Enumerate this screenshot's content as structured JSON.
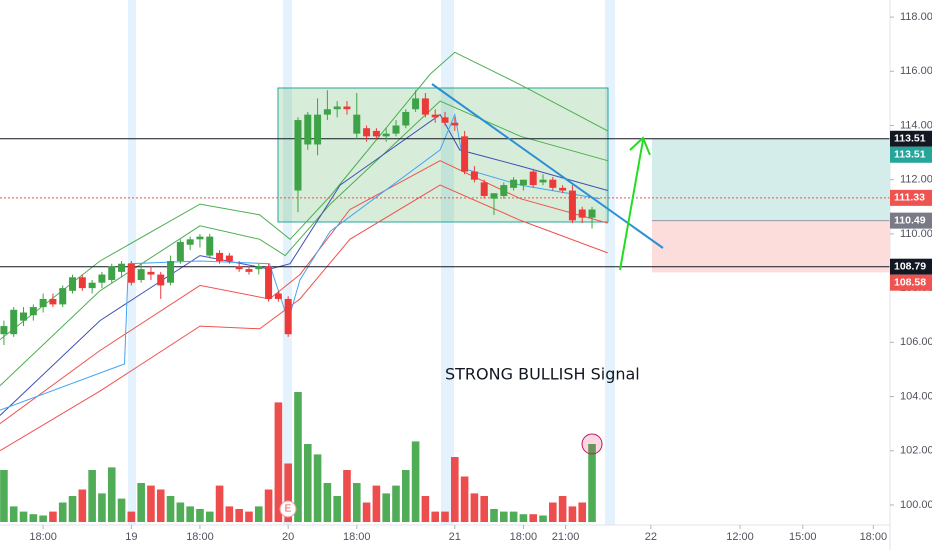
{
  "chart_data": {
    "type": "candlestick",
    "annotation": "STRONG BULLISH Signal",
    "event_marker": "E",
    "up_color": "#3ea346",
    "down_color": "#ec3a3a",
    "xlim": [
      -0.4,
      90.4
    ],
    "xticks": [
      {
        "value": 4,
        "label": "18:00"
      },
      {
        "value": 13,
        "label": "19"
      },
      {
        "value": 20,
        "label": "18:00"
      },
      {
        "value": 29,
        "label": "20"
      },
      {
        "value": 36,
        "label": "18:00"
      },
      {
        "value": 46,
        "label": "21"
      },
      {
        "value": 53,
        "label": "18:00"
      },
      {
        "value": 57.3,
        "label": "21:00"
      },
      {
        "value": 66,
        "label": "22"
      },
      {
        "value": 75.1,
        "label": "12:00"
      },
      {
        "value": 81.5,
        "label": "15:00"
      },
      {
        "value": 88.7,
        "label": "18:00"
      }
    ],
    "ylim": [
      99.26,
      118.63
    ],
    "yticks": [
      {
        "value": 100,
        "label": "100.00"
      },
      {
        "value": 102,
        "label": "102.00"
      },
      {
        "value": 104,
        "label": "104.00"
      },
      {
        "value": 106,
        "label": "106.00"
      },
      {
        "value": 108,
        "label": "108.00"
      },
      {
        "value": 110,
        "label": "110.00"
      },
      {
        "value": 112,
        "label": "112.00"
      },
      {
        "value": 114,
        "label": "114.00"
      },
      {
        "value": 116,
        "label": "116.00"
      },
      {
        "value": 118,
        "label": "118.00"
      }
    ],
    "open": [
      106.3,
      106.3,
      106.8,
      107.0,
      107.3,
      107.6,
      107.4,
      107.9,
      108.4,
      108.0,
      108.2,
      108.3,
      108.6,
      108.9,
      108.3,
      108.6,
      108.5,
      108.2,
      109.0,
      109.6,
      109.8,
      109.2,
      109.3,
      109.2,
      108.8,
      108.7,
      108.7,
      108.8,
      107.8,
      107.6,
      111.6,
      113.3,
      113.3,
      114.4,
      114.6,
      114.7,
      113.7,
      113.9,
      113.8,
      113.6,
      113.7,
      114.0,
      114.6,
      115.0,
      114.4,
      114.3,
      114.1,
      113.6,
      112.3,
      111.9,
      111.3,
      111.4,
      111.7,
      111.8,
      112.3,
      111.9,
      112.0,
      111.7,
      111.6,
      110.9,
      110.6
    ],
    "high": [
      106.8,
      107.3,
      107.3,
      107.4,
      107.8,
      107.8,
      108.1,
      108.5,
      108.5,
      108.3,
      108.6,
      108.9,
      109.0,
      109.0,
      108.9,
      108.8,
      108.6,
      109.2,
      109.8,
      109.9,
      110.0,
      110.0,
      109.4,
      109.3,
      109.0,
      108.8,
      108.9,
      108.9,
      107.9,
      107.7,
      114.3,
      114.5,
      115.0,
      115.3,
      114.9,
      114.9,
      115.2,
      114.0,
      113.9,
      113.9,
      114.2,
      114.6,
      115.3,
      115.2,
      114.6,
      114.5,
      114.3,
      113.8,
      112.5,
      112.0,
      111.5,
      111.9,
      112.1,
      112.0,
      112.4,
      112.2,
      112.1,
      111.8,
      111.8,
      111.0,
      111.0
    ],
    "low": [
      105.9,
      106.2,
      106.6,
      106.8,
      107.1,
      107.3,
      107.3,
      107.8,
      107.9,
      107.8,
      108.0,
      108.2,
      108.4,
      108.1,
      108.2,
      108.3,
      107.6,
      108.1,
      108.9,
      109.4,
      109.5,
      109.1,
      108.9,
      108.9,
      108.6,
      108.5,
      108.5,
      107.5,
      107.5,
      106.2,
      110.8,
      113.1,
      112.9,
      114.2,
      114.3,
      114.4,
      113.5,
      113.4,
      113.5,
      113.4,
      113.6,
      113.9,
      114.5,
      114.3,
      114.1,
      114.0,
      113.8,
      112.2,
      111.9,
      111.3,
      110.7,
      111.3,
      111.6,
      111.6,
      111.7,
      111.8,
      111.6,
      111.5,
      110.4,
      110.4,
      110.2
    ],
    "close": [
      106.6,
      107.2,
      107.1,
      107.3,
      107.6,
      107.4,
      108.0,
      108.4,
      108.0,
      108.2,
      108.5,
      108.8,
      108.9,
      108.2,
      108.7,
      108.5,
      108.1,
      109.0,
      109.7,
      109.8,
      109.9,
      109.9,
      109.0,
      109.0,
      108.7,
      108.6,
      108.8,
      107.6,
      107.6,
      106.3,
      114.2,
      114.4,
      114.4,
      114.6,
      114.7,
      114.6,
      114.4,
      113.6,
      113.6,
      113.7,
      114.0,
      114.5,
      115.0,
      114.4,
      114.3,
      114.1,
      114.0,
      112.3,
      112.0,
      111.4,
      111.5,
      111.8,
      112.0,
      112.0,
      111.8,
      112.0,
      111.7,
      111.6,
      110.5,
      110.6,
      110.9
    ],
    "volume": [
      40,
      12,
      8,
      6,
      5,
      8,
      15,
      20,
      25,
      40,
      22,
      42,
      18,
      8,
      30,
      28,
      25,
      20,
      15,
      12,
      10,
      8,
      28,
      12,
      10,
      8,
      12,
      25,
      92,
      45,
      100,
      60,
      52,
      30,
      20,
      40,
      30,
      15,
      28,
      22,
      28,
      40,
      62,
      20,
      8,
      8,
      50,
      35,
      22,
      20,
      10,
      8,
      8,
      6,
      6,
      5,
      15,
      20,
      12,
      15,
      60
    ],
    "indicators": [
      {
        "color": "#4caf50",
        "x": [
          -0.4,
          9.8,
          20,
          26.1,
          29.2,
          33.3,
          43.5,
          46,
          52.7,
          61.6
        ],
        "values": [
          106.1,
          109.0,
          111.1,
          110.7,
          109.8,
          111.4,
          115.9,
          116.7,
          115.5,
          113.8
        ]
      },
      {
        "color": "#4caf50",
        "x": [
          -0.4,
          9.8,
          20,
          26.1,
          28.7,
          33.3,
          44.5,
          52.7,
          61.6
        ],
        "values": [
          104.4,
          107.9,
          110.3,
          109.8,
          109.2,
          111.1,
          114.9,
          113.6,
          112.7
        ]
      },
      {
        "color": "#3f51b5",
        "x": [
          -0.4,
          9.8,
          20,
          27.1,
          29.2,
          34.3,
          44.5,
          46.5,
          52.7,
          61.6
        ],
        "values": [
          103.3,
          106.8,
          109.2,
          108.7,
          108.9,
          111.8,
          114.4,
          113.1,
          112.5,
          111.6
        ]
      },
      {
        "color": "#ef5350",
        "x": [
          -0.4,
          9.8,
          20,
          27.1,
          30.2,
          35.3,
          44.5,
          52.7,
          61.6
        ],
        "values": [
          103.0,
          105.7,
          108.1,
          107.6,
          108.5,
          110.9,
          112.7,
          111.3,
          110.4
        ]
      },
      {
        "color": "#ef5350",
        "x": [
          -0.4,
          9.8,
          20,
          26.1,
          30.2,
          35.3,
          44.5,
          52.7,
          61.6
        ],
        "values": [
          102.0,
          104.2,
          106.6,
          106.5,
          107.6,
          109.8,
          111.8,
          110.5,
          109.3
        ]
      },
      {
        "color": "#42a5f5",
        "x": [
          -0.4,
          10.8,
          12.3,
          12.7,
          20,
          27.1,
          29,
          30.2,
          33.3,
          44.5,
          46,
          47,
          52.7,
          60.8
        ],
        "values": [
          103.5,
          105.0,
          105.2,
          108.9,
          109.0,
          108.9,
          106.8,
          108.3,
          110.1,
          113.1,
          114.4,
          112.4,
          111.8,
          111.3
        ]
      }
    ],
    "price_tags": [
      {
        "value": 113.51,
        "color": "#131722",
        "line": "solid"
      },
      {
        "value": 113.51,
        "color": "#26a69a",
        "line": null
      },
      {
        "value": 111.33,
        "color": "#ef5350",
        "line": "dotted"
      },
      {
        "value": 110.49,
        "color": "#787b86",
        "line": null
      },
      {
        "value": 108.79,
        "color": "#131722",
        "line": "solid"
      },
      {
        "value": 108.58,
        "color": "#ef5350",
        "line": null
      }
    ]
  }
}
